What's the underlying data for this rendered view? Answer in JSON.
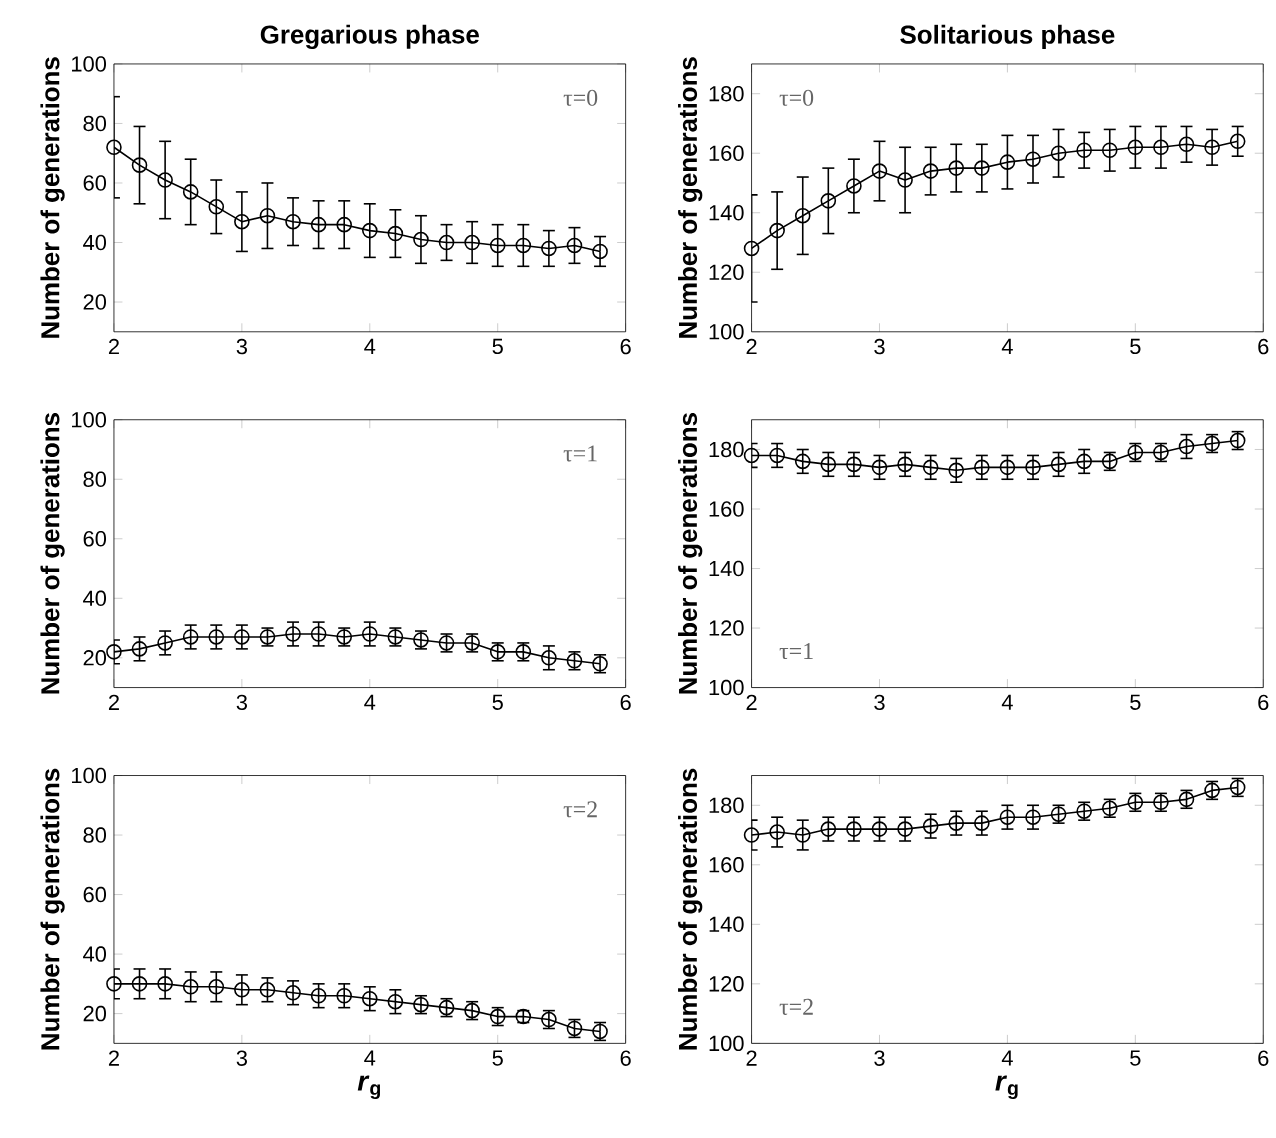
{
  "chart_data": [
    {
      "type": "line",
      "title": "Gregarious phase",
      "ylabel": "Number of generations",
      "annotations": [
        "τ=0"
      ],
      "color": "#000000",
      "marker": "circle",
      "x": [
        2.0,
        2.2,
        2.4,
        2.6,
        2.8,
        3.0,
        3.2,
        3.4,
        3.6,
        3.8,
        4.0,
        4.2,
        4.4,
        4.6,
        4.8,
        5.0,
        5.2,
        5.4,
        5.6,
        5.8
      ],
      "values": [
        72,
        66,
        61,
        57,
        52,
        47,
        49,
        47,
        46,
        46,
        44,
        43,
        41,
        40,
        40,
        39,
        39,
        38,
        39,
        37
      ],
      "errors": [
        17,
        13,
        13,
        11,
        9,
        10,
        11,
        8,
        8,
        8,
        9,
        8,
        8,
        6,
        7,
        7,
        7,
        6,
        6,
        5
      ],
      "xlim": [
        2,
        6
      ],
      "xticks": [
        2,
        3,
        4,
        5,
        6
      ],
      "ylim": [
        10,
        100
      ],
      "yticks": [
        20,
        40,
        60,
        80,
        100
      ]
    },
    {
      "type": "line",
      "title": "Solitarious phase",
      "ylabel": "Number of generations",
      "annotations": [
        "τ=0"
      ],
      "color": "#000000",
      "marker": "circle",
      "x": [
        2.0,
        2.2,
        2.4,
        2.6,
        2.8,
        3.0,
        3.2,
        3.4,
        3.6,
        3.8,
        4.0,
        4.2,
        4.4,
        4.6,
        4.8,
        5.0,
        5.2,
        5.4,
        5.6,
        5.8
      ],
      "values": [
        128,
        134,
        139,
        144,
        149,
        154,
        151,
        154,
        155,
        155,
        157,
        158,
        160,
        161,
        161,
        162,
        162,
        163,
        162,
        164
      ],
      "errors": [
        18,
        13,
        13,
        11,
        9,
        10,
        11,
        8,
        8,
        8,
        9,
        8,
        8,
        6,
        7,
        7,
        7,
        6,
        6,
        5
      ],
      "xlim": [
        2,
        6
      ],
      "xticks": [
        2,
        3,
        4,
        5,
        6
      ],
      "ylim": [
        100,
        190
      ],
      "yticks": [
        100,
        120,
        140,
        160,
        180
      ]
    },
    {
      "type": "line",
      "ylabel": "Number of generations",
      "annotations": [
        "τ=1"
      ],
      "color": "#000000",
      "marker": "circle",
      "x": [
        2.0,
        2.2,
        2.4,
        2.6,
        2.8,
        3.0,
        3.2,
        3.4,
        3.6,
        3.8,
        4.0,
        4.2,
        4.4,
        4.6,
        4.8,
        5.0,
        5.2,
        5.4,
        5.6,
        5.8
      ],
      "values": [
        22,
        23,
        25,
        27,
        27,
        27,
        27,
        28,
        28,
        27,
        28,
        27,
        26,
        25,
        25,
        22,
        22,
        20,
        19,
        18
      ],
      "errors": [
        4,
        4,
        4,
        4,
        4,
        4,
        3,
        4,
        4,
        3,
        4,
        3,
        3,
        3,
        3,
        3,
        3,
        4,
        3,
        3
      ],
      "xlim": [
        2,
        6
      ],
      "xticks": [
        2,
        3,
        4,
        5,
        6
      ],
      "ylim": [
        10,
        100
      ],
      "yticks": [
        20,
        40,
        60,
        80,
        100
      ]
    },
    {
      "type": "line",
      "ylabel": "Number of generations",
      "annotations": [
        "τ=1"
      ],
      "color": "#000000",
      "marker": "circle",
      "x": [
        2.0,
        2.2,
        2.4,
        2.6,
        2.8,
        3.0,
        3.2,
        3.4,
        3.6,
        3.8,
        4.0,
        4.2,
        4.4,
        4.6,
        4.8,
        5.0,
        5.2,
        5.4,
        5.6,
        5.8
      ],
      "values": [
        178,
        178,
        176,
        175,
        175,
        174,
        175,
        174,
        173,
        174,
        174,
        174,
        175,
        176,
        176,
        179,
        179,
        181,
        182,
        183
      ],
      "errors": [
        4,
        4,
        4,
        4,
        4,
        4,
        4,
        4,
        4,
        4,
        4,
        4,
        4,
        4,
        3,
        3,
        3,
        4,
        3,
        3
      ],
      "xlim": [
        2,
        6
      ],
      "xticks": [
        2,
        3,
        4,
        5,
        6
      ],
      "ylim": [
        100,
        190
      ],
      "yticks": [
        100,
        120,
        140,
        160,
        180
      ]
    },
    {
      "type": "line",
      "xlabel": "*r*$_{g}$",
      "ylabel": "Number of generations",
      "annotations": [
        "τ=2"
      ],
      "color": "#000000",
      "marker": "circle",
      "x": [
        2.0,
        2.2,
        2.4,
        2.6,
        2.8,
        3.0,
        3.2,
        3.4,
        3.6,
        3.8,
        4.0,
        4.2,
        4.4,
        4.6,
        4.8,
        5.0,
        5.2,
        5.4,
        5.6,
        5.8
      ],
      "values": [
        30,
        30,
        30,
        29,
        29,
        28,
        28,
        27,
        26,
        26,
        25,
        24,
        23,
        22,
        21,
        19,
        19,
        18,
        15,
        14
      ],
      "errors": [
        5,
        5,
        5,
        5,
        5,
        5,
        4,
        4,
        4,
        4,
        4,
        4,
        3,
        3,
        3,
        3,
        2,
        3,
        3,
        3
      ],
      "xlim": [
        2,
        6
      ],
      "xticks": [
        2,
        3,
        4,
        5,
        6
      ],
      "ylim": [
        10,
        100
      ],
      "yticks": [
        20,
        40,
        60,
        80,
        100
      ]
    },
    {
      "type": "line",
      "xlabel": "*r*$_{g}$",
      "ylabel": "Number of generations",
      "annotations": [
        "τ=2"
      ],
      "color": "#000000",
      "marker": "circle",
      "x": [
        2.0,
        2.2,
        2.4,
        2.6,
        2.8,
        3.0,
        3.2,
        3.4,
        3.6,
        3.8,
        4.0,
        4.2,
        4.4,
        4.6,
        4.8,
        5.0,
        5.2,
        5.4,
        5.6,
        5.8
      ],
      "values": [
        170,
        171,
        170,
        172,
        172,
        172,
        172,
        173,
        174,
        174,
        176,
        176,
        177,
        178,
        179,
        181,
        181,
        182,
        185,
        186
      ],
      "errors": [
        5,
        5,
        5,
        4,
        4,
        4,
        4,
        4,
        4,
        4,
        4,
        4,
        3,
        3,
        3,
        3,
        3,
        3,
        3,
        3
      ],
      "xlim": [
        2,
        6
      ],
      "xticks": [
        2,
        3,
        4,
        5,
        6
      ],
      "ylim": [
        100,
        190
      ],
      "yticks": [
        100,
        120,
        140,
        160,
        180
      ]
    }
  ]
}
